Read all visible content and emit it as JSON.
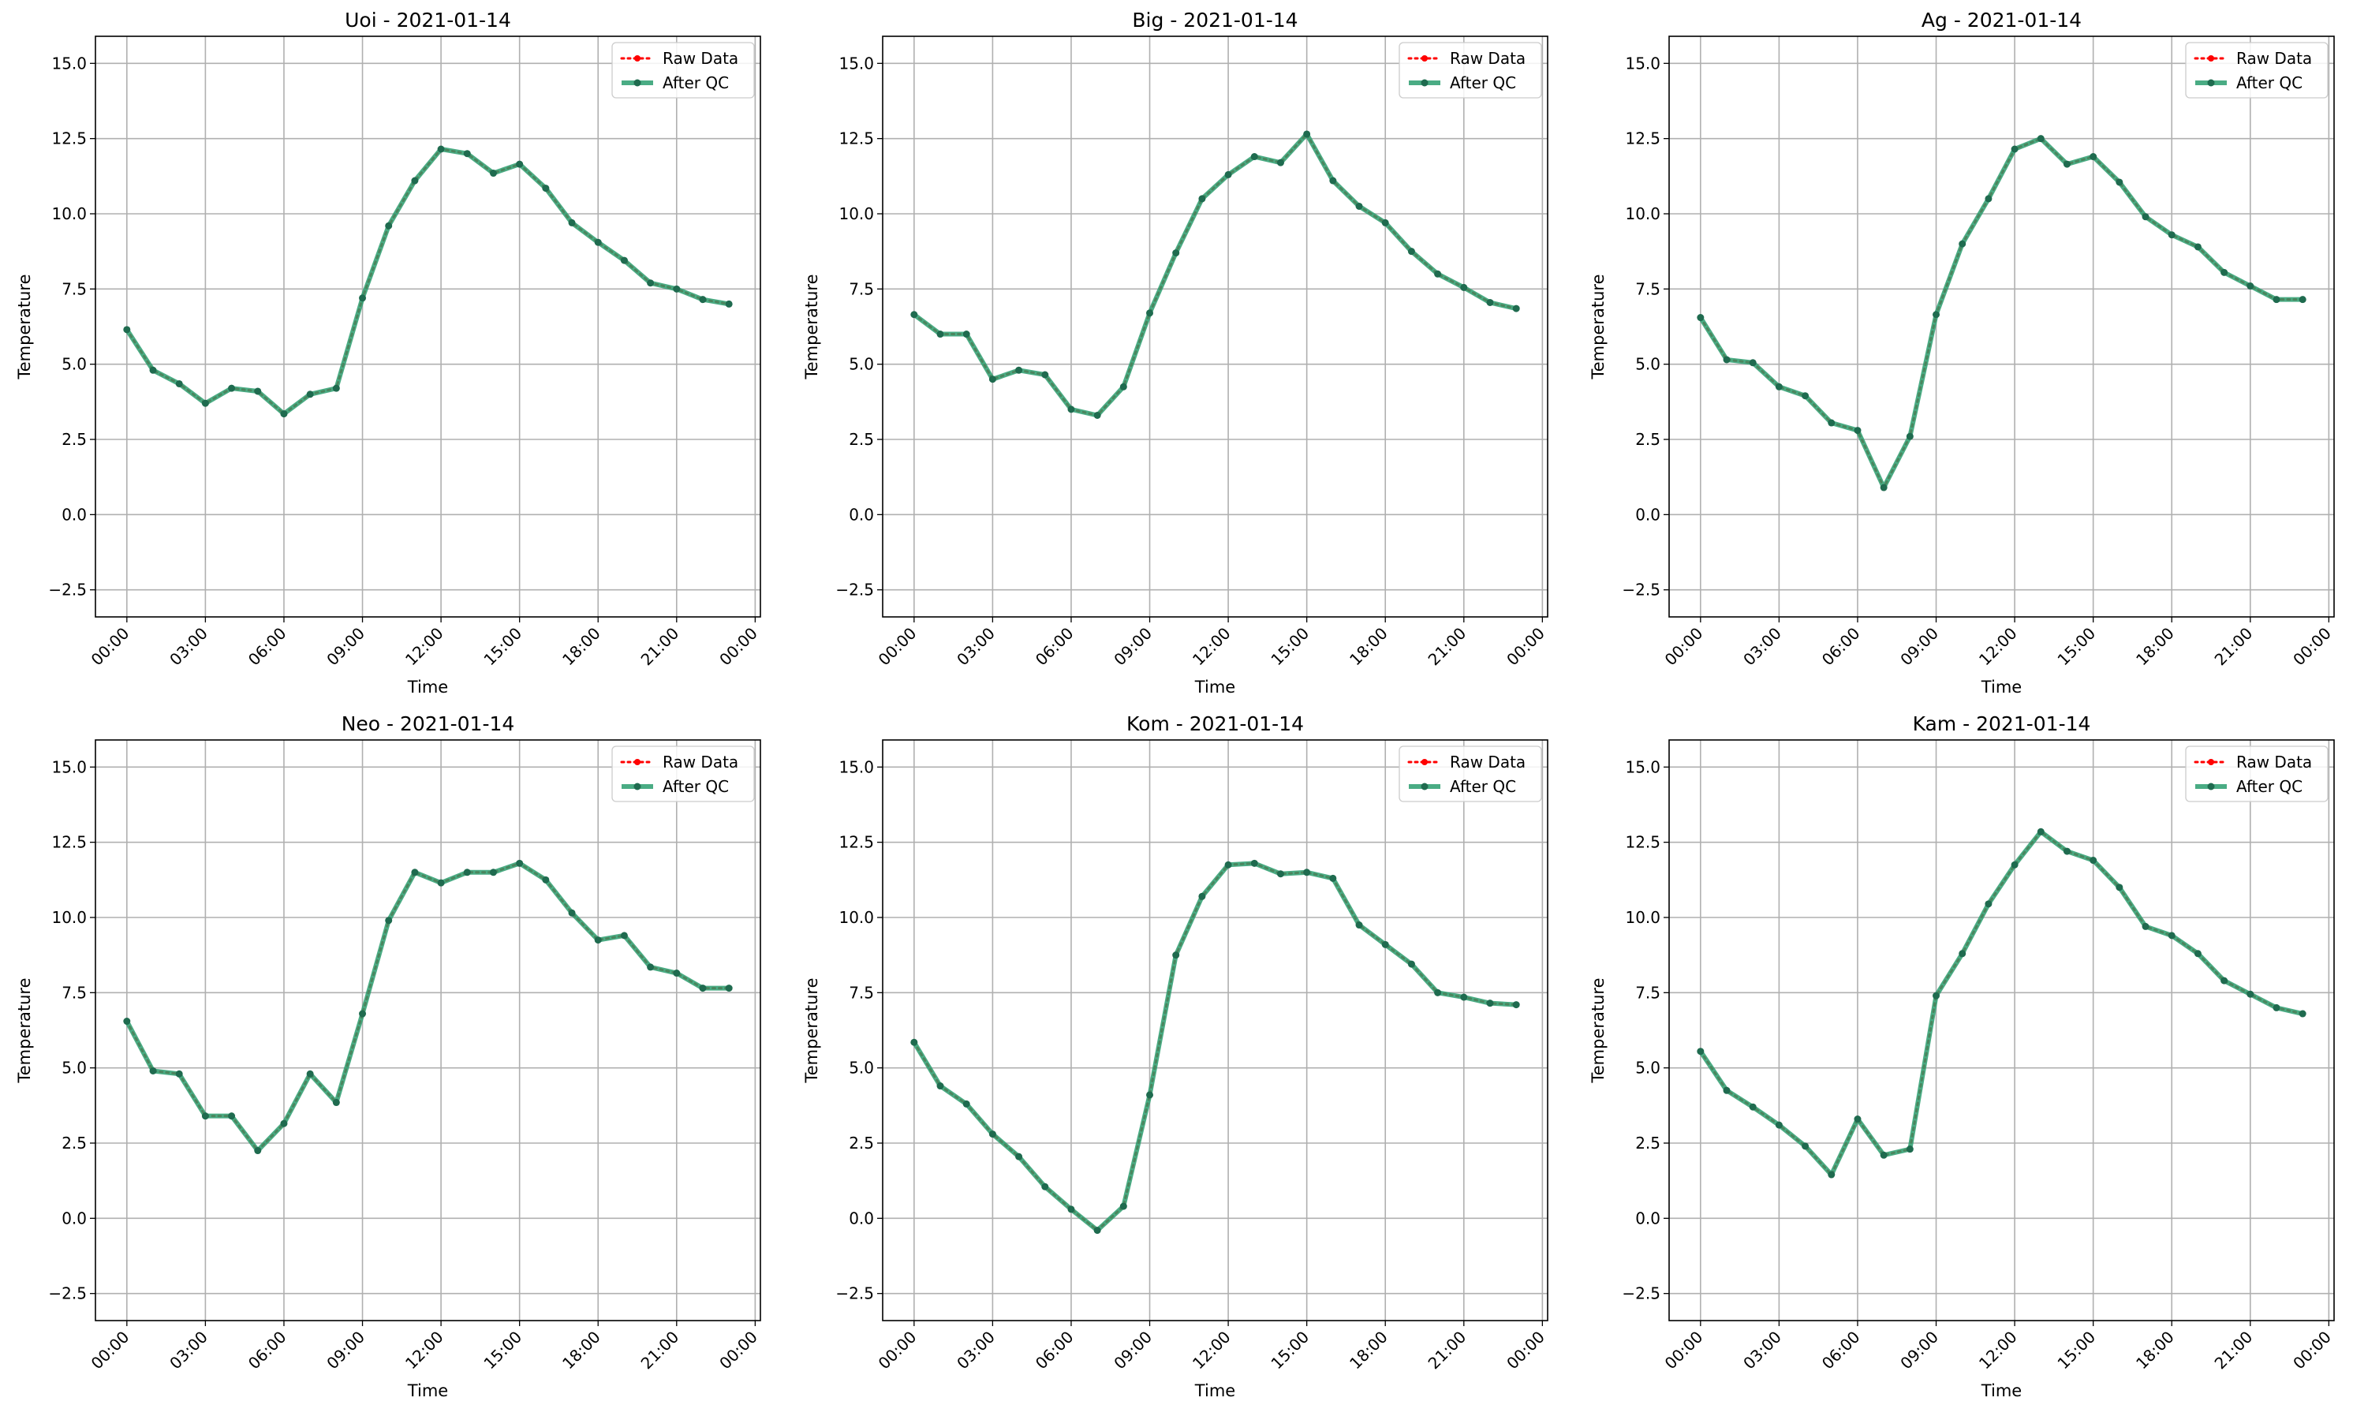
{
  "legend": {
    "raw_label": "Raw Data",
    "qc_label": "After QC"
  },
  "colors": {
    "raw": "#ff0000",
    "qc": "#2a9d6e",
    "qc_marker": "#1f6b4f",
    "grid": "#b0b0b0"
  },
  "chart_data": [
    {
      "type": "line",
      "title": "Uoi - 2021-01-14",
      "xlabel": "Time",
      "ylabel": "Temperature",
      "xticks": [
        "00:00",
        "03:00",
        "06:00",
        "09:00",
        "12:00",
        "15:00",
        "18:00",
        "21:00",
        "00:00"
      ],
      "yticks": [
        "−2.5",
        "0.0",
        "2.5",
        "5.0",
        "7.5",
        "10.0",
        "12.5",
        "15.0"
      ],
      "xlim_hours": [
        -1.2,
        24.2
      ],
      "ylim": [
        -3.4,
        15.9
      ],
      "grid": true,
      "legend_position": "upper right",
      "x_hours": [
        0,
        1,
        2,
        3,
        4,
        5,
        6,
        7,
        8,
        9,
        10,
        11,
        12,
        13,
        14,
        15,
        16,
        17,
        18,
        19,
        20,
        21,
        22,
        23
      ],
      "series": [
        {
          "name": "Raw Data",
          "values": [
            6.15,
            4.8,
            4.35,
            3.7,
            4.2,
            4.1,
            3.35,
            4.0,
            4.2,
            7.2,
            9.6,
            11.1,
            12.15,
            12.0,
            11.35,
            11.65,
            10.85,
            9.7,
            9.05,
            8.45,
            7.7,
            7.5,
            7.15,
            7.0
          ]
        },
        {
          "name": "After QC",
          "values": [
            6.15,
            4.8,
            4.35,
            3.7,
            4.2,
            4.1,
            3.35,
            4.0,
            4.2,
            7.2,
            9.6,
            11.1,
            12.15,
            12.0,
            11.35,
            11.65,
            10.85,
            9.7,
            9.05,
            8.45,
            7.7,
            7.5,
            7.15,
            7.0
          ]
        }
      ]
    },
    {
      "type": "line",
      "title": "Big - 2021-01-14",
      "xlabel": "Time",
      "ylabel": "Temperature",
      "xticks": [
        "00:00",
        "03:00",
        "06:00",
        "09:00",
        "12:00",
        "15:00",
        "18:00",
        "21:00",
        "00:00"
      ],
      "yticks": [
        "−2.5",
        "0.0",
        "2.5",
        "5.0",
        "7.5",
        "10.0",
        "12.5",
        "15.0"
      ],
      "xlim_hours": [
        -1.2,
        24.2
      ],
      "ylim": [
        -3.4,
        15.9
      ],
      "grid": true,
      "legend_position": "upper right",
      "x_hours": [
        0,
        1,
        2,
        3,
        4,
        5,
        6,
        7,
        8,
        9,
        10,
        11,
        12,
        13,
        14,
        15,
        16,
        17,
        18,
        19,
        20,
        21,
        22,
        23
      ],
      "series": [
        {
          "name": "Raw Data",
          "values": [
            6.65,
            6.0,
            6.0,
            4.5,
            4.8,
            4.65,
            3.5,
            3.3,
            4.25,
            6.7,
            8.7,
            10.5,
            11.3,
            11.9,
            11.7,
            12.65,
            11.1,
            10.25,
            9.7,
            8.75,
            8.0,
            7.55,
            7.05,
            6.85
          ]
        },
        {
          "name": "After QC",
          "values": [
            6.65,
            6.0,
            6.0,
            4.5,
            4.8,
            4.65,
            3.5,
            3.3,
            4.25,
            6.7,
            8.7,
            10.5,
            11.3,
            11.9,
            11.7,
            12.65,
            11.1,
            10.25,
            9.7,
            8.75,
            8.0,
            7.55,
            7.05,
            6.85
          ]
        }
      ]
    },
    {
      "type": "line",
      "title": "Ag - 2021-01-14",
      "xlabel": "Time",
      "ylabel": "Temperature",
      "xticks": [
        "00:00",
        "03:00",
        "06:00",
        "09:00",
        "12:00",
        "15:00",
        "18:00",
        "21:00",
        "00:00"
      ],
      "yticks": [
        "−2.5",
        "0.0",
        "2.5",
        "5.0",
        "7.5",
        "10.0",
        "12.5",
        "15.0"
      ],
      "xlim_hours": [
        -1.2,
        24.2
      ],
      "ylim": [
        -3.4,
        15.9
      ],
      "grid": true,
      "legend_position": "upper right",
      "x_hours": [
        0,
        1,
        2,
        3,
        4,
        5,
        6,
        7,
        8,
        9,
        10,
        11,
        12,
        13,
        14,
        15,
        16,
        17,
        18,
        19,
        20,
        21,
        22,
        23
      ],
      "series": [
        {
          "name": "Raw Data",
          "values": [
            6.55,
            5.15,
            5.05,
            4.25,
            3.95,
            3.05,
            2.8,
            0.9,
            2.6,
            6.65,
            9.0,
            10.5,
            12.15,
            12.5,
            11.65,
            11.9,
            11.05,
            9.9,
            9.3,
            8.9,
            8.05,
            7.6,
            7.15,
            7.15
          ]
        },
        {
          "name": "After QC",
          "values": [
            6.55,
            5.15,
            5.05,
            4.25,
            3.95,
            3.05,
            2.8,
            0.9,
            2.6,
            6.65,
            9.0,
            10.5,
            12.15,
            12.5,
            11.65,
            11.9,
            11.05,
            9.9,
            9.3,
            8.9,
            8.05,
            7.6,
            7.15,
            7.15
          ]
        }
      ]
    },
    {
      "type": "line",
      "title": "Neo - 2021-01-14",
      "xlabel": "Time",
      "ylabel": "Temperature",
      "xticks": [
        "00:00",
        "03:00",
        "06:00",
        "09:00",
        "12:00",
        "15:00",
        "18:00",
        "21:00",
        "00:00"
      ],
      "yticks": [
        "−2.5",
        "0.0",
        "2.5",
        "5.0",
        "7.5",
        "10.0",
        "12.5",
        "15.0"
      ],
      "xlim_hours": [
        -1.2,
        24.2
      ],
      "ylim": [
        -3.4,
        15.9
      ],
      "grid": true,
      "legend_position": "upper right",
      "x_hours": [
        0,
        1,
        2,
        3,
        4,
        5,
        6,
        7,
        8,
        9,
        10,
        11,
        12,
        13,
        14,
        15,
        16,
        17,
        18,
        19,
        20,
        21,
        22,
        23
      ],
      "series": [
        {
          "name": "Raw Data",
          "values": [
            6.55,
            4.9,
            4.8,
            3.4,
            3.4,
            2.25,
            3.15,
            4.8,
            3.85,
            6.8,
            9.9,
            11.5,
            11.15,
            11.5,
            11.5,
            11.8,
            11.25,
            10.15,
            9.25,
            9.4,
            8.35,
            8.15,
            7.65,
            7.65
          ]
        },
        {
          "name": "After QC",
          "values": [
            6.55,
            4.9,
            4.8,
            3.4,
            3.4,
            2.25,
            3.15,
            4.8,
            3.85,
            6.8,
            9.9,
            11.5,
            11.15,
            11.5,
            11.5,
            11.8,
            11.25,
            10.15,
            9.25,
            9.4,
            8.35,
            8.15,
            7.65,
            7.65
          ]
        }
      ]
    },
    {
      "type": "line",
      "title": "Kom - 2021-01-14",
      "xlabel": "Time",
      "ylabel": "Temperature",
      "xticks": [
        "00:00",
        "03:00",
        "06:00",
        "09:00",
        "12:00",
        "15:00",
        "18:00",
        "21:00",
        "00:00"
      ],
      "yticks": [
        "−2.5",
        "0.0",
        "2.5",
        "5.0",
        "7.5",
        "10.0",
        "12.5",
        "15.0"
      ],
      "xlim_hours": [
        -1.2,
        24.2
      ],
      "ylim": [
        -3.4,
        15.9
      ],
      "grid": true,
      "legend_position": "upper right",
      "x_hours": [
        0,
        1,
        2,
        3,
        4,
        5,
        6,
        7,
        8,
        9,
        10,
        11,
        12,
        13,
        14,
        15,
        16,
        17,
        18,
        19,
        20,
        21,
        22,
        23
      ],
      "series": [
        {
          "name": "Raw Data",
          "values": [
            5.85,
            4.4,
            3.8,
            2.8,
            2.05,
            1.05,
            0.3,
            -0.4,
            0.4,
            4.1,
            8.75,
            10.7,
            11.75,
            11.8,
            11.45,
            11.5,
            11.3,
            9.75,
            9.1,
            8.45,
            7.5,
            7.35,
            7.15,
            7.1
          ]
        },
        {
          "name": "After QC",
          "values": [
            5.85,
            4.4,
            3.8,
            2.8,
            2.05,
            1.05,
            0.3,
            -0.4,
            0.4,
            4.1,
            8.75,
            10.7,
            11.75,
            11.8,
            11.45,
            11.5,
            11.3,
            9.75,
            9.1,
            8.45,
            7.5,
            7.35,
            7.15,
            7.1
          ]
        }
      ]
    },
    {
      "type": "line",
      "title": "Kam - 2021-01-14",
      "xlabel": "Time",
      "ylabel": "Temperature",
      "xticks": [
        "00:00",
        "03:00",
        "06:00",
        "09:00",
        "12:00",
        "15:00",
        "18:00",
        "21:00",
        "00:00"
      ],
      "yticks": [
        "−2.5",
        "0.0",
        "2.5",
        "5.0",
        "7.5",
        "10.0",
        "12.5",
        "15.0"
      ],
      "xlim_hours": [
        -1.2,
        24.2
      ],
      "ylim": [
        -3.4,
        15.9
      ],
      "grid": true,
      "legend_position": "upper right",
      "x_hours": [
        0,
        1,
        2,
        3,
        4,
        5,
        6,
        7,
        8,
        9,
        10,
        11,
        12,
        13,
        14,
        15,
        16,
        17,
        18,
        19,
        20,
        21,
        22,
        23
      ],
      "series": [
        {
          "name": "Raw Data",
          "values": [
            5.55,
            4.25,
            3.7,
            3.1,
            2.4,
            1.45,
            3.3,
            2.1,
            2.3,
            7.4,
            8.8,
            10.45,
            11.75,
            12.85,
            12.2,
            11.9,
            11.0,
            9.7,
            9.4,
            8.8,
            7.9,
            7.45,
            7.0,
            6.8
          ]
        },
        {
          "name": "After QC",
          "values": [
            5.55,
            4.25,
            3.7,
            3.1,
            2.4,
            1.45,
            3.3,
            2.1,
            2.3,
            7.4,
            8.8,
            10.45,
            11.75,
            12.85,
            12.2,
            11.9,
            11.0,
            9.7,
            9.4,
            8.8,
            7.9,
            7.45,
            7.0,
            6.8
          ]
        }
      ]
    }
  ]
}
